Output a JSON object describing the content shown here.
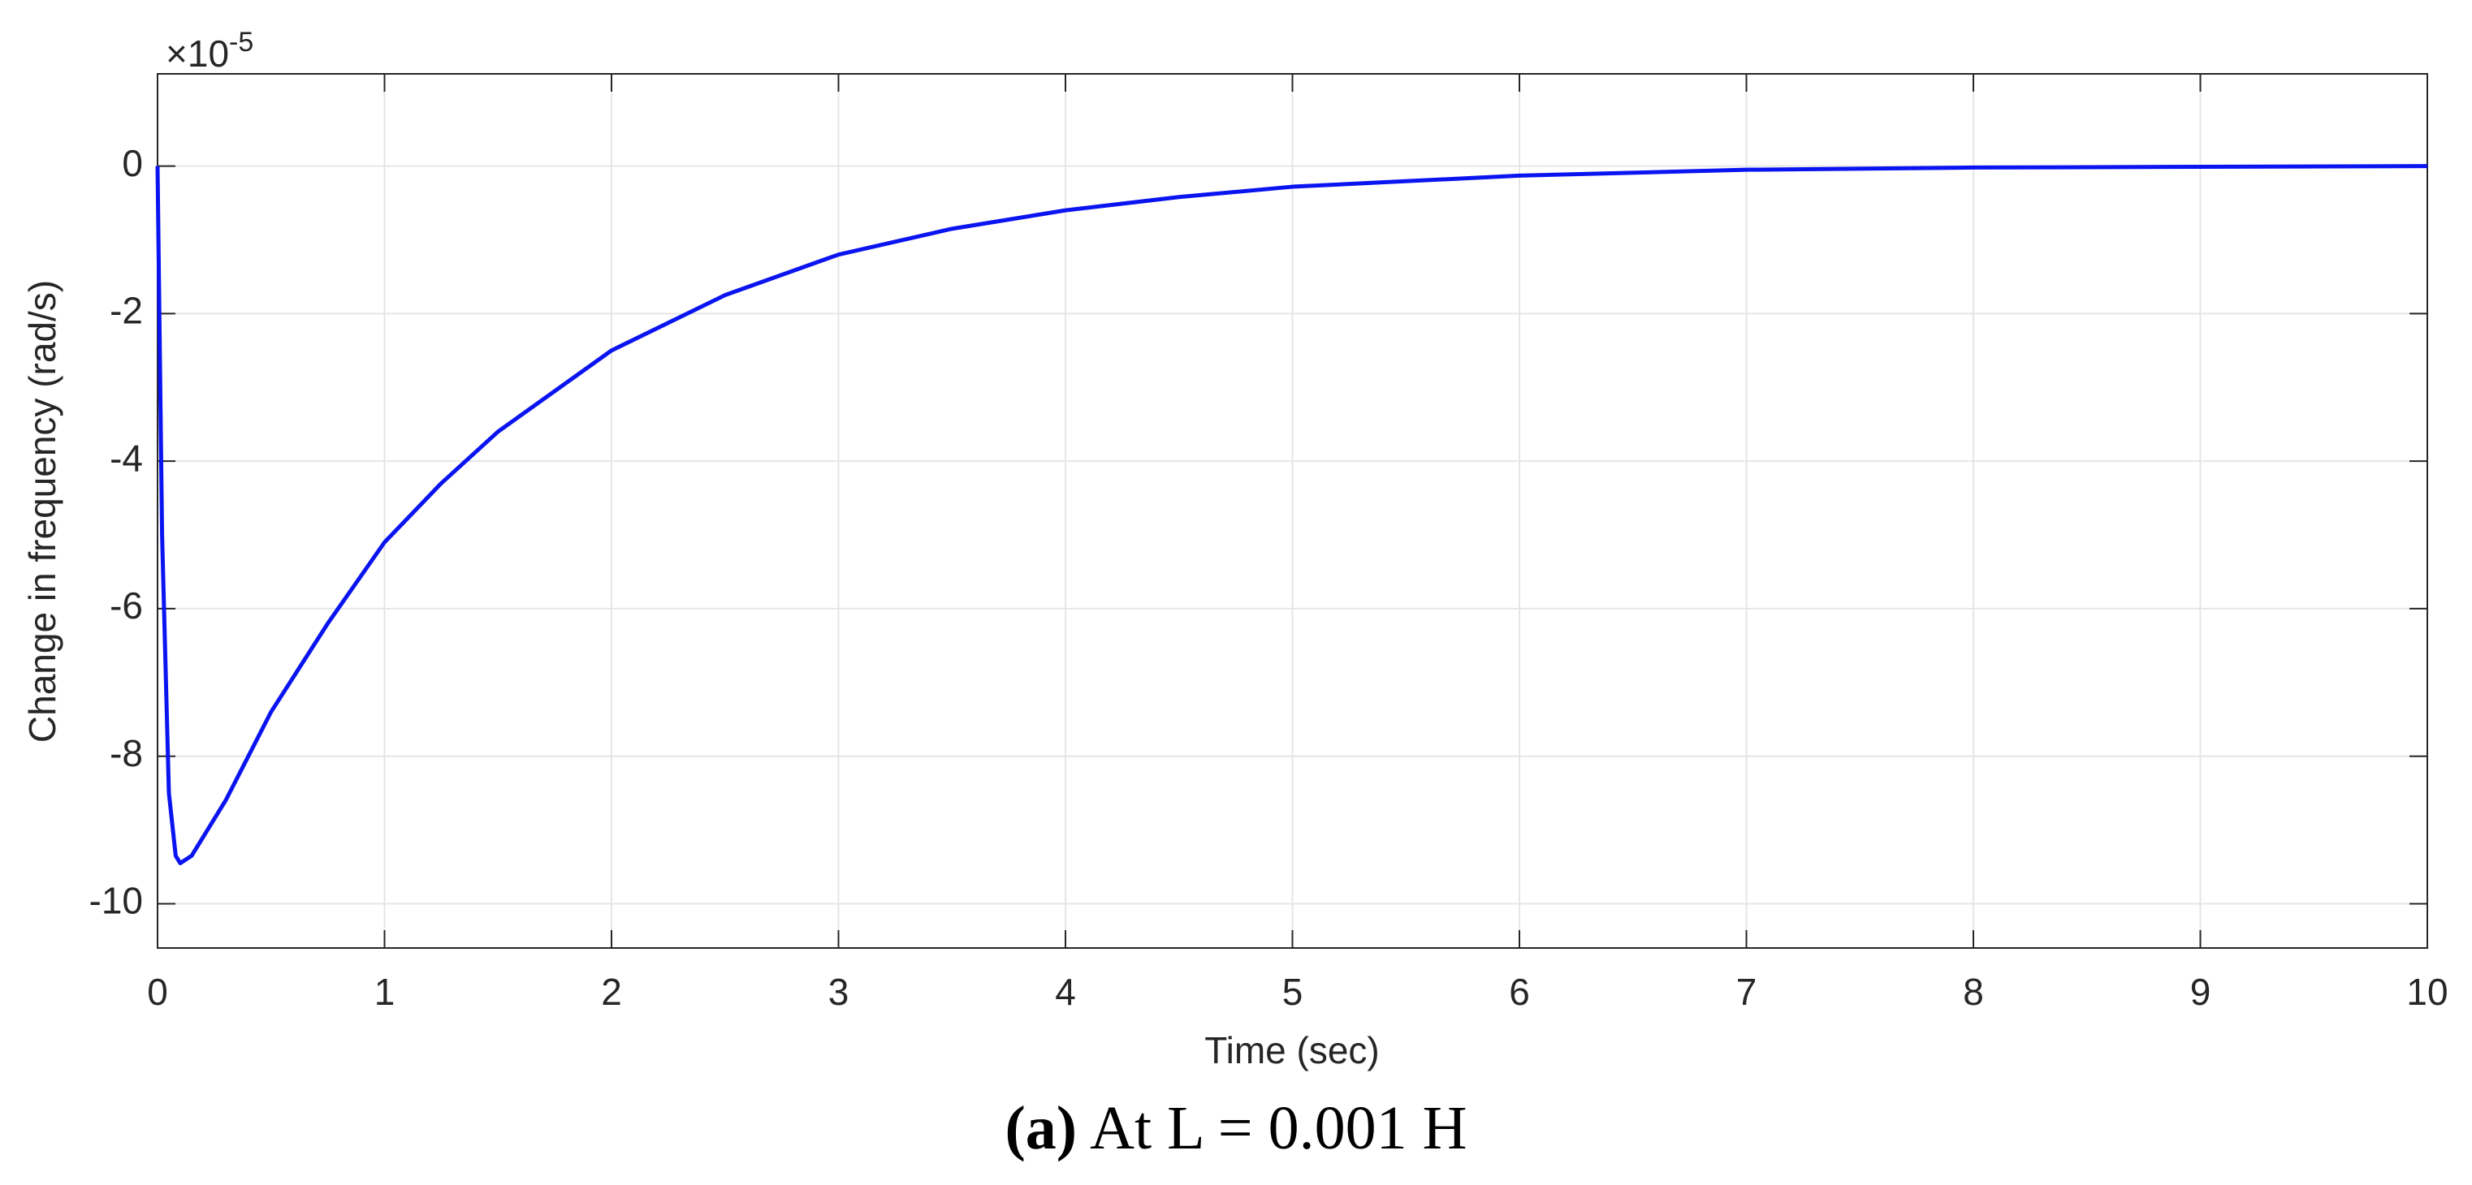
{
  "chart_data": {
    "type": "line",
    "x_label": "Time (sec)",
    "y_label": "Change in frequency (rad/s)",
    "y_multiplier": "×10",
    "y_multiplier_exponent": "-5",
    "caption_label": "(a)",
    "caption": "At L = 0.001 H",
    "x": [
      0,
      0.02,
      0.05,
      0.08,
      0.1,
      0.15,
      0.2,
      0.3,
      0.5,
      0.75,
      1,
      1.25,
      1.5,
      2,
      2.5,
      3,
      3.5,
      4,
      4.5,
      5,
      6,
      7,
      8,
      9,
      10
    ],
    "series": [
      {
        "color": "#0a14f0",
        "values": [
          0,
          -5,
          -8.5,
          -9.35,
          -9.45,
          -9.35,
          -9.1,
          -8.6,
          -7.4,
          -6.2,
          -5.1,
          -4.3,
          -3.6,
          -2.5,
          -1.75,
          -1.2,
          -0.85,
          -0.6,
          -0.42,
          -0.28,
          -0.13,
          -0.05,
          -0.02,
          -0.01,
          0
        ]
      }
    ],
    "xlim": [
      0,
      10
    ],
    "ylim": [
      -10.6,
      1.25
    ],
    "xticks": [
      0,
      1,
      2,
      3,
      4,
      5,
      6,
      7,
      8,
      9,
      10
    ],
    "yticks": [
      -10,
      -8,
      -6,
      -4,
      -2,
      0
    ],
    "grid": true
  }
}
